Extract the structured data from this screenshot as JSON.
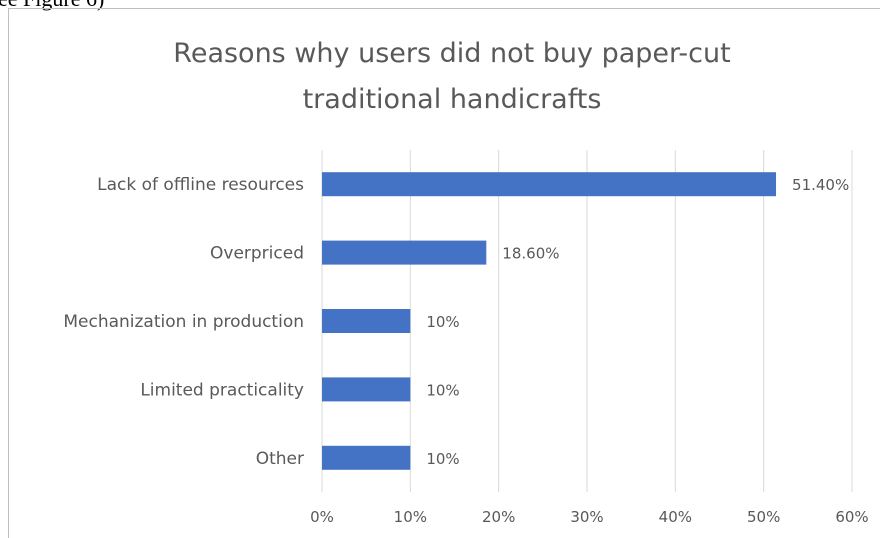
{
  "caption_fragment": "ee Figure 6)",
  "chart_data": {
    "type": "bar",
    "orientation": "horizontal",
    "title_lines": [
      "Reasons why users did not buy paper-cut",
      "traditional handicrafts"
    ],
    "categories": [
      "Lack of offline resources",
      "Overpriced",
      "Mechanization in production",
      "Limited practicality",
      "Other"
    ],
    "values": [
      51.4,
      18.6,
      10,
      10,
      10
    ],
    "data_labels": [
      "51.40%",
      "18.60%",
      "10%",
      "10%",
      "10%"
    ],
    "x_ticks": [
      "0%",
      "10%",
      "20%",
      "30%",
      "40%",
      "50%",
      "60%"
    ],
    "xlim": [
      0,
      60
    ],
    "grid": true,
    "legend": "none",
    "colors": {
      "bar": "#4472c4",
      "gridline": "#d9d9d9",
      "text": "#595959"
    }
  }
}
